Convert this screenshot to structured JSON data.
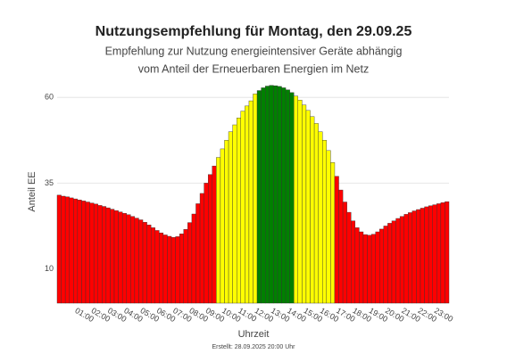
{
  "chart_data": {
    "type": "bar",
    "title": "Nutzungsempfehlung für Montag, den 29.09.25",
    "subtitle": [
      "Empfehlung zur Nutzung energieintensiver Geräte abhängig",
      "vom Anteil der Erneuerbaren Energien im Netz"
    ],
    "y_label": "Anteil EE",
    "x_label": "Uhrzeit",
    "footnote": "Erstellt: 28.09.2025 20:00 Uhr",
    "categories": [
      null,
      null,
      null,
      null,
      "01:00",
      null,
      null,
      null,
      "02:00",
      null,
      null,
      null,
      "03:00",
      null,
      null,
      null,
      "04:00",
      null,
      null,
      null,
      "05:00",
      null,
      null,
      null,
      "06:00",
      null,
      null,
      null,
      "07:00",
      null,
      null,
      null,
      "08:00",
      null,
      null,
      null,
      "09:00",
      null,
      null,
      null,
      "10:00",
      null,
      null,
      null,
      "11:00",
      null,
      null,
      null,
      "12:00",
      null,
      null,
      null,
      "13:00",
      null,
      null,
      null,
      "14:00",
      null,
      null,
      null,
      "15:00",
      null,
      null,
      null,
      "16:00",
      null,
      null,
      null,
      "17:00",
      null,
      null,
      null,
      "18:00",
      null,
      null,
      null,
      "19:00",
      null,
      null,
      null,
      "20:00",
      null,
      null,
      null,
      "21:00",
      null,
      null,
      null,
      "22:00",
      null,
      null,
      null,
      "23:00",
      null,
      null,
      null
    ],
    "values": [
      31.5,
      31.2,
      31,
      30.7,
      30.4,
      30.1,
      29.8,
      29.5,
      29.2,
      28.9,
      28.5,
      28.2,
      27.8,
      27.4,
      27,
      26.6,
      26.2,
      25.8,
      25.3,
      24.8,
      24.3,
      23.6,
      22.8,
      22,
      21.2,
      20.5,
      19.9,
      19.5,
      19.2,
      19.4,
      20.2,
      21.5,
      23.5,
      26,
      29,
      32,
      35,
      37.5,
      40,
      42.5,
      45,
      47.5,
      50,
      52,
      54,
      56,
      57.5,
      59,
      61,
      62,
      62.8,
      63.3,
      63.5,
      63.4,
      63.2,
      62.8,
      62.2,
      61.4,
      60.4,
      59.2,
      57.8,
      56.2,
      54.4,
      52.4,
      50,
      47.5,
      44.5,
      41,
      37,
      33,
      29.5,
      26.5,
      24,
      22,
      20.8,
      20,
      19.8,
      20.1,
      20.8,
      21.6,
      22.5,
      23.3,
      24,
      24.7,
      25.3,
      25.9,
      26.4,
      26.9,
      27.3,
      27.7,
      28.1,
      28.4,
      28.7,
      29,
      29.3,
      29.6
    ],
    "colors": [
      "#ff0000",
      "#ff0000",
      "#ff0000",
      "#ff0000",
      "#ff0000",
      "#ff0000",
      "#ff0000",
      "#ff0000",
      "#ff0000",
      "#ff0000",
      "#ff0000",
      "#ff0000",
      "#ff0000",
      "#ff0000",
      "#ff0000",
      "#ff0000",
      "#ff0000",
      "#ff0000",
      "#ff0000",
      "#ff0000",
      "#ff0000",
      "#ff0000",
      "#ff0000",
      "#ff0000",
      "#ff0000",
      "#ff0000",
      "#ff0000",
      "#ff0000",
      "#ff0000",
      "#ff0000",
      "#ff0000",
      "#ff0000",
      "#ff0000",
      "#ff0000",
      "#ff0000",
      "#ff0000",
      "#ff0000",
      "#ff0000",
      "#ff0000",
      "#ffff00",
      "#ffff00",
      "#ffff00",
      "#ffff00",
      "#ffff00",
      "#ffff00",
      "#ffff00",
      "#ffff00",
      "#ffff00",
      "#ffff00",
      "#008000",
      "#008000",
      "#008000",
      "#008000",
      "#008000",
      "#008000",
      "#008000",
      "#008000",
      "#008000",
      "#ffff00",
      "#ffff00",
      "#ffff00",
      "#ffff00",
      "#ffff00",
      "#ffff00",
      "#ffff00",
      "#ffff00",
      "#ffff00",
      "#ffff00",
      "#ff0000",
      "#ff0000",
      "#ff0000",
      "#ff0000",
      "#ff0000",
      "#ff0000",
      "#ff0000",
      "#ff0000",
      "#ff0000",
      "#ff0000",
      "#ff0000",
      "#ff0000",
      "#ff0000",
      "#ff0000",
      "#ff0000",
      "#ff0000",
      "#ff0000",
      "#ff0000",
      "#ff0000",
      "#ff0000",
      "#ff0000",
      "#ff0000",
      "#ff0000",
      "#ff0000",
      "#ff0000",
      "#ff0000",
      "#ff0000",
      "#ff0000"
    ],
    "ylim": [
      0,
      65
    ],
    "yticks": [
      10,
      35,
      60
    ],
    "grid": true
  }
}
